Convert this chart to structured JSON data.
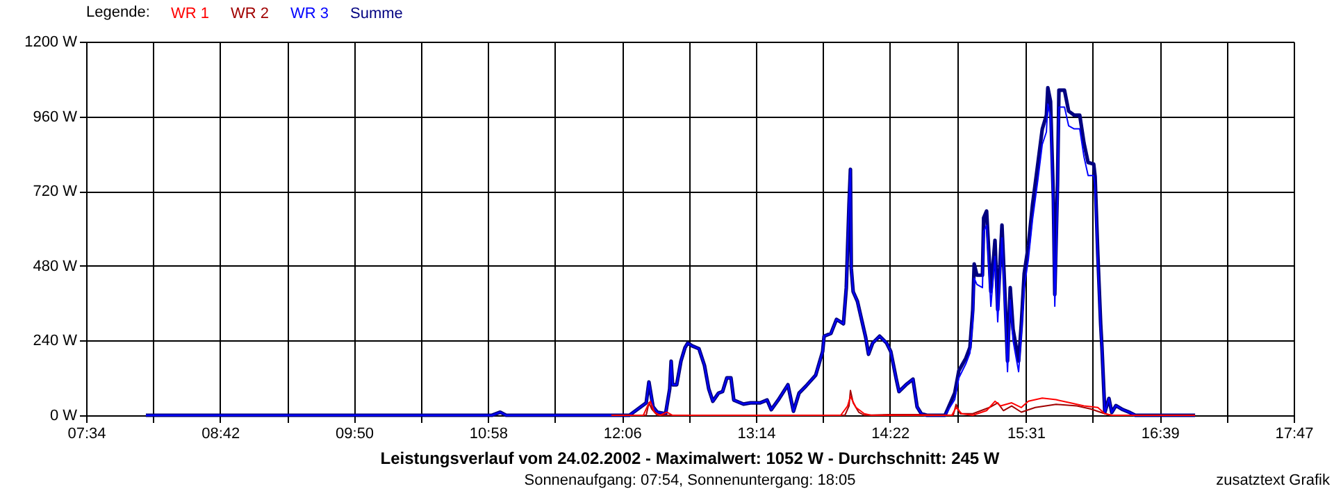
{
  "chart_data": {
    "type": "line",
    "title": "Leistungsverlauf vom 24.02.2002 - Maximalwert: 1052 W - Durchschnitt: 245 W",
    "subtitle": "Sonnenaufgang: 07:54, Sonnenuntergang: 18:05",
    "annotations": [
      "zusatztext Grafik"
    ],
    "legend_title": "Legende:",
    "legend": "top left",
    "grid": true,
    "xlim": [
      7.5667,
      17.7833
    ],
    "xticks": [
      {
        "value": 7.5667,
        "label": "07:34"
      },
      {
        "value": 8.1333,
        "label": null
      },
      {
        "value": 8.7,
        "label": "08:42"
      },
      {
        "value": 9.2667,
        "label": null
      },
      {
        "value": 9.8333,
        "label": "09:50"
      },
      {
        "value": 10.4,
        "label": null
      },
      {
        "value": 10.9667,
        "label": "10:58"
      },
      {
        "value": 11.5333,
        "label": null
      },
      {
        "value": 12.1,
        "label": "12:06"
      },
      {
        "value": 12.6667,
        "label": null
      },
      {
        "value": 13.2333,
        "label": "13:14"
      },
      {
        "value": 13.8,
        "label": null
      },
      {
        "value": 14.3667,
        "label": "14:22"
      },
      {
        "value": 14.9417,
        "label": null
      },
      {
        "value": 15.5167,
        "label": "15:31"
      },
      {
        "value": 16.0833,
        "label": null
      },
      {
        "value": 16.65,
        "label": "16:39"
      },
      {
        "value": 17.2167,
        "label": null
      },
      {
        "value": 17.7833,
        "label": "17:47"
      }
    ],
    "ylim": [
      0,
      1200
    ],
    "yticks": [
      {
        "value": 0,
        "label": "0 W"
      },
      {
        "value": 240,
        "label": "240 W"
      },
      {
        "value": 480,
        "label": "480 W"
      },
      {
        "value": 720,
        "label": "720 W"
      },
      {
        "value": 960,
        "label": "960 W"
      },
      {
        "value": 1200,
        "label": "1200 W"
      }
    ],
    "series": [
      {
        "name": "WR 1",
        "color": "#ff0000",
        "x": [
          12.011,
          12.281,
          12.316,
          12.34,
          12.375,
          12.422,
          12.481,
          12.528,
          13.951,
          14.009,
          14.033,
          14.08,
          14.15,
          14.209,
          14.891,
          14.927,
          14.974,
          15.068,
          15.185,
          15.256,
          15.303,
          15.397,
          15.479,
          15.538,
          15.656,
          15.773,
          15.891,
          16.009,
          16.126,
          16.185,
          16.244,
          16.949
        ],
        "values": [
          0,
          0,
          30,
          45,
          10,
          0,
          10,
          0,
          0,
          30,
          60,
          25,
          5,
          0,
          0,
          25,
          5,
          0,
          15,
          45,
          30,
          40,
          25,
          45,
          55,
          50,
          40,
          30,
          25,
          5,
          0,
          0
        ]
      },
      {
        "name": "WR 2",
        "color": "#a00000",
        "x": [
          12.011,
          12.305,
          12.328,
          12.352,
          12.399,
          13.986,
          14.021,
          14.033,
          14.056,
          14.103,
          14.15,
          14.362,
          14.597,
          14.903,
          14.927,
          14.962,
          15.068,
          15.209,
          15.279,
          15.327,
          15.397,
          15.479,
          15.597,
          15.773,
          15.95,
          16.068,
          16.185,
          16.244,
          16.949
        ],
        "values": [
          0,
          0,
          40,
          20,
          0,
          0,
          30,
          80,
          40,
          10,
          0,
          2,
          2,
          0,
          35,
          5,
          5,
          25,
          40,
          15,
          30,
          10,
          25,
          35,
          30,
          20,
          5,
          0,
          0
        ]
      },
      {
        "name": "WR 3",
        "color": "#0000ff",
        "x": [
          8.072,
          11.0,
          11.07,
          11.12,
          12.011,
          12.163,
          12.305,
          12.328,
          12.363,
          12.399,
          12.469,
          12.504,
          12.516,
          12.528,
          12.563,
          12.599,
          12.634,
          12.657,
          12.693,
          12.751,
          12.798,
          12.834,
          12.869,
          12.916,
          12.951,
          12.987,
          13.022,
          13.046,
          13.128,
          13.187,
          13.269,
          13.328,
          13.363,
          13.422,
          13.504,
          13.551,
          13.598,
          13.657,
          13.739,
          13.798,
          13.81,
          13.868,
          13.915,
          13.974,
          13.998,
          14.021,
          14.033,
          14.04,
          14.056,
          14.092,
          14.127,
          14.162,
          14.186,
          14.221,
          14.28,
          14.339,
          14.374,
          14.421,
          14.444,
          14.503,
          14.562,
          14.597,
          14.633,
          14.68,
          14.833,
          14.915,
          14.95,
          15.009,
          15.044,
          15.068,
          15.08,
          15.103,
          15.15,
          15.16,
          15.185,
          15.209,
          15.221,
          15.256,
          15.279,
          15.315,
          15.338,
          15.362,
          15.385,
          15.409,
          15.456,
          15.479,
          15.503,
          15.538,
          15.574,
          15.62,
          15.656,
          15.691,
          15.703,
          15.726,
          15.75,
          15.762,
          15.785,
          15.797,
          15.844,
          15.879,
          15.926,
          15.973,
          16.009,
          16.044,
          16.091,
          16.103,
          16.126,
          16.15,
          16.161,
          16.185,
          16.22,
          16.244,
          16.279,
          16.338,
          16.397,
          16.443,
          16.949
        ],
        "values": [
          0,
          0,
          10,
          0,
          0,
          0,
          40,
          107,
          27,
          10,
          5,
          85,
          174,
          98,
          98,
          174,
          218,
          232,
          223,
          214,
          160,
          85,
          45,
          71,
          76,
          120,
          120,
          49,
          36,
          40,
          40,
          49,
          18,
          49,
          98,
          13,
          71,
          94,
          129,
          205,
          254,
          263,
          308,
          294,
          410,
          678,
          790,
          472,
          397,
          366,
          308,
          250,
          196,
          232,
          254,
          232,
          205,
          116,
          76,
          98,
          116,
          27,
          5,
          0,
          0,
          50,
          120,
          165,
          200,
          300,
          440,
          420,
          410,
          590,
          610,
          440,
          350,
          510,
          300,
          570,
          370,
          140,
          370,
          240,
          140,
          260,
          410,
          500,
          630,
          760,
          870,
          910,
          1000,
          960,
          650,
          350,
          690,
          990,
          990,
          930,
          920,
          920,
          830,
          770,
          770,
          730,
          490,
          280,
          218,
          9,
          54,
          9,
          31,
          18,
          9,
          0,
          0
        ]
      },
      {
        "name": "Summe",
        "color": "#000080",
        "x": [
          8.072,
          11.0,
          11.07,
          11.12,
          12.011,
          12.163,
          12.305,
          12.328,
          12.363,
          12.399,
          12.469,
          12.504,
          12.516,
          12.528,
          12.563,
          12.599,
          12.634,
          12.657,
          12.693,
          12.751,
          12.798,
          12.834,
          12.869,
          12.916,
          12.951,
          12.987,
          13.022,
          13.046,
          13.128,
          13.187,
          13.269,
          13.328,
          13.363,
          13.422,
          13.504,
          13.551,
          13.598,
          13.657,
          13.739,
          13.798,
          13.81,
          13.868,
          13.915,
          13.974,
          13.998,
          14.021,
          14.033,
          14.04,
          14.056,
          14.092,
          14.127,
          14.162,
          14.186,
          14.221,
          14.28,
          14.339,
          14.374,
          14.421,
          14.444,
          14.503,
          14.562,
          14.597,
          14.633,
          14.68,
          14.833,
          14.915,
          14.95,
          15.009,
          15.044,
          15.068,
          15.08,
          15.103,
          15.15,
          15.16,
          15.185,
          15.209,
          15.221,
          15.256,
          15.279,
          15.315,
          15.338,
          15.362,
          15.385,
          15.409,
          15.456,
          15.479,
          15.503,
          15.538,
          15.574,
          15.62,
          15.656,
          15.691,
          15.703,
          15.726,
          15.75,
          15.762,
          15.785,
          15.797,
          15.844,
          15.879,
          15.926,
          15.973,
          16.009,
          16.044,
          16.091,
          16.103,
          16.126,
          16.15,
          16.161,
          16.185,
          16.22,
          16.244,
          16.279,
          16.338,
          16.397,
          16.443,
          16.949
        ],
        "values": [
          0,
          0,
          10,
          0,
          0,
          0,
          40,
          107,
          27,
          10,
          5,
          85,
          174,
          98,
          98,
          174,
          218,
          232,
          223,
          214,
          160,
          85,
          45,
          71,
          76,
          120,
          120,
          49,
          36,
          40,
          40,
          49,
          18,
          49,
          98,
          13,
          71,
          94,
          129,
          205,
          254,
          263,
          308,
          294,
          410,
          678,
          790,
          472,
          397,
          366,
          308,
          250,
          196,
          232,
          254,
          232,
          205,
          116,
          76,
          98,
          116,
          27,
          5,
          0,
          0,
          71,
          143,
          183,
          218,
          339,
          486,
          450,
          450,
          634,
          656,
          486,
          397,
          562,
          339,
          611,
          410,
          174,
          410,
          276,
          174,
          294,
          455,
          544,
          678,
          812,
          919,
          964,
          1052,
          1008,
          696,
          388,
          740,
          1044,
          1044,
          977,
          964,
          964,
          874,
          812,
          807,
          767,
          517,
          294,
          218,
          9,
          54,
          9,
          31,
          18,
          9,
          0,
          0
        ]
      }
    ]
  }
}
